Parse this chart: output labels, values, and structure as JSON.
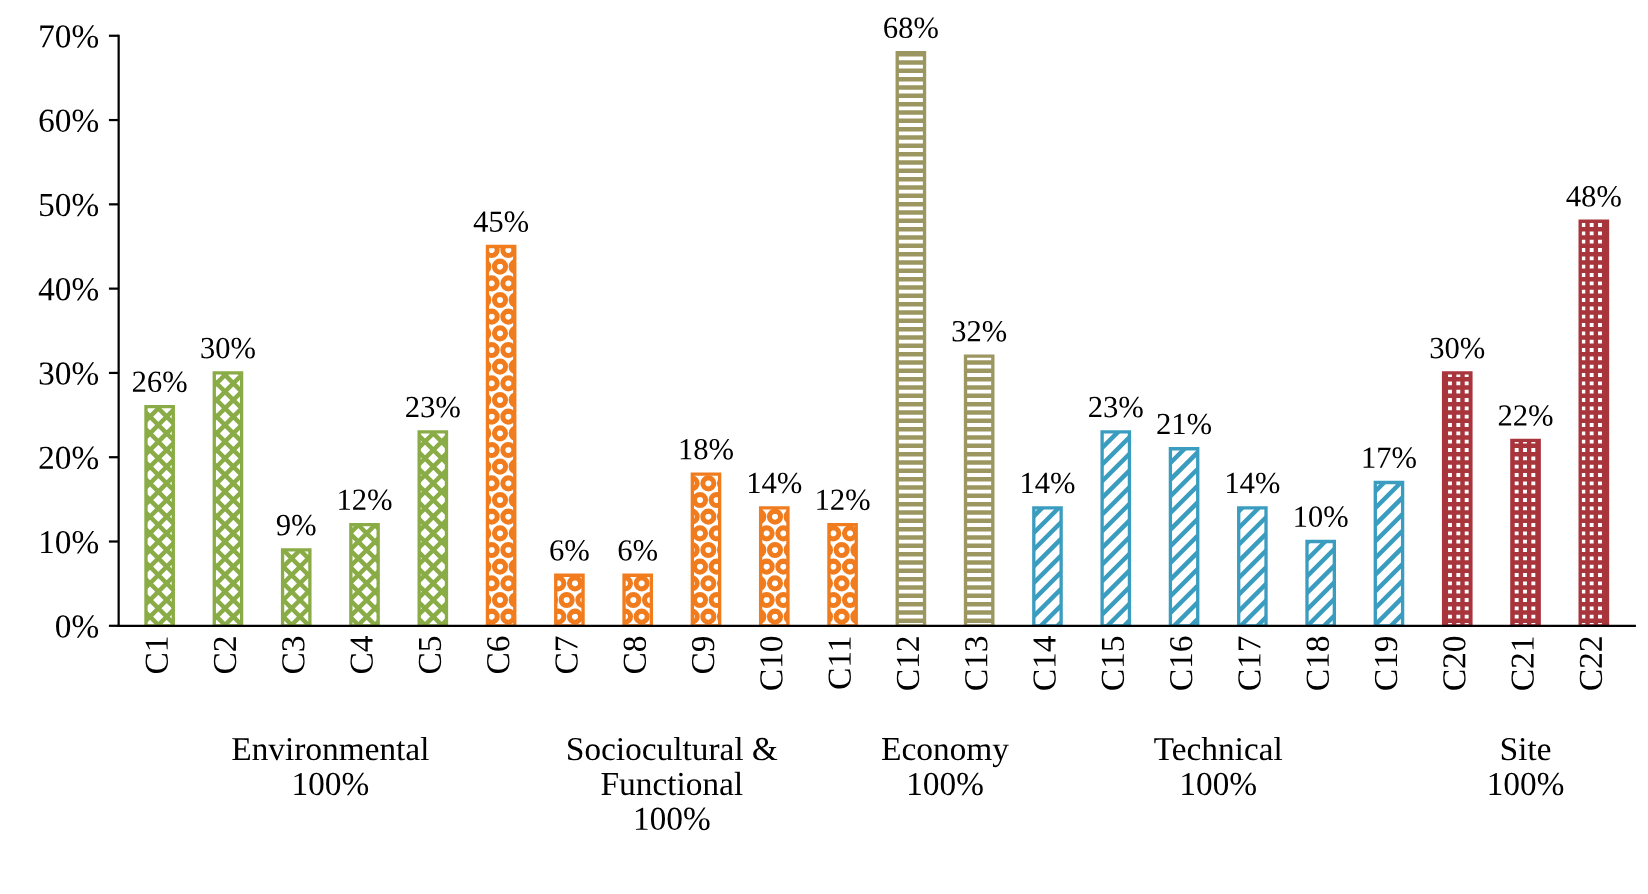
{
  "chart_data": {
    "type": "bar",
    "categories": [
      "C1",
      "C2",
      "C3",
      "C4",
      "C5",
      "C6",
      "C7",
      "C8",
      "C9",
      "C10",
      "C11",
      "C12",
      "C13",
      "C14",
      "C15",
      "C16",
      "C17",
      "C18",
      "C19",
      "C20",
      "C21",
      "C22"
    ],
    "values": [
      26,
      30,
      9,
      12,
      23,
      45,
      6,
      6,
      18,
      14,
      12,
      68,
      32,
      14,
      23,
      21,
      14,
      10,
      17,
      30,
      22,
      48
    ],
    "value_labels": [
      "26%",
      "30%",
      "9%",
      "12%",
      "23%",
      "45%",
      "6%",
      "6%",
      "18%",
      "14%",
      "12%",
      "68%",
      "32%",
      "14%",
      "23%",
      "21%",
      "14%",
      "10%",
      "17%",
      "30%",
      "22%",
      "48%"
    ],
    "colors": [
      "#8aac46",
      "#8aac46",
      "#8aac46",
      "#8aac46",
      "#8aac46",
      "#f07c1e",
      "#f07c1e",
      "#f07c1e",
      "#f07c1e",
      "#f07c1e",
      "#f07c1e",
      "#9c9660",
      "#9c9660",
      "#3a9dc0",
      "#3a9dc0",
      "#3a9dc0",
      "#3a9dc0",
      "#3a9dc0",
      "#3a9dc0",
      "#a8343c",
      "#a8343c",
      "#a8343c"
    ],
    "ylim": [
      0,
      70
    ],
    "yticks": [
      {
        "value": 0,
        "label": "0%"
      },
      {
        "value": 10,
        "label": "10%"
      },
      {
        "value": 20,
        "label": "20%"
      },
      {
        "value": 30,
        "label": "30%"
      },
      {
        "value": 40,
        "label": "40%"
      },
      {
        "value": 50,
        "label": "50%"
      },
      {
        "value": 60,
        "label": "60%"
      },
      {
        "value": 70,
        "label": "70%"
      }
    ],
    "annotations": [
      "Environmental\n100%",
      "Sociocultural &\nFunctional\n100%",
      "Economy\n100%",
      "Technical\n100%",
      "Site\n100%"
    ],
    "grid": false
  }
}
